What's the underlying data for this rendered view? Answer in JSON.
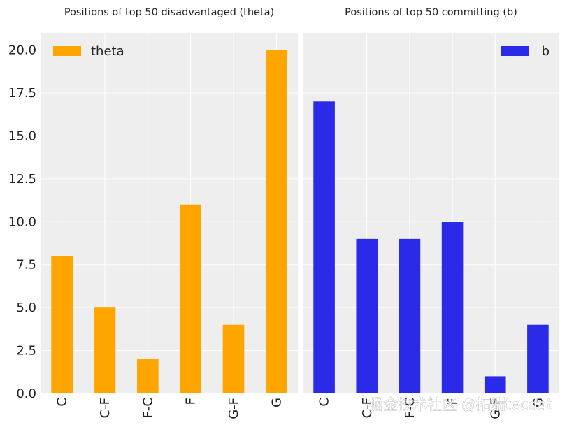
{
  "chart_data": [
    {
      "type": "bar",
      "title": "Positions of top 50 disadvantaged (theta)",
      "categories": [
        "C",
        "C-F",
        "F-C",
        "F",
        "G-F",
        "G"
      ],
      "series": [
        {
          "name": "theta",
          "values": [
            8,
            5,
            2,
            11,
            4,
            20
          ],
          "color": "#FFA500"
        }
      ],
      "ylim": [
        0,
        21
      ],
      "yticks": [
        "0.0",
        "2.5",
        "5.0",
        "7.5",
        "10.0",
        "12.5",
        "15.0",
        "17.5",
        "20.0"
      ],
      "grid": true,
      "legend": "top-left"
    },
    {
      "type": "bar",
      "title": "Positions of top 50 committing (b)",
      "categories": [
        "C",
        "C-F",
        "F-C",
        "F",
        "G-F",
        "G"
      ],
      "series": [
        {
          "name": "b",
          "values": [
            17,
            9,
            9,
            10,
            1,
            4
          ],
          "color": "#2A2AE8"
        }
      ],
      "ylim": [
        0,
        21
      ],
      "grid": true,
      "legend": "top-right"
    }
  ],
  "watermark": "掘金技术社区 @拓端tecdat",
  "colors": {
    "panel_bg": "#EEEEEE",
    "grid": "#FFFFFF"
  }
}
